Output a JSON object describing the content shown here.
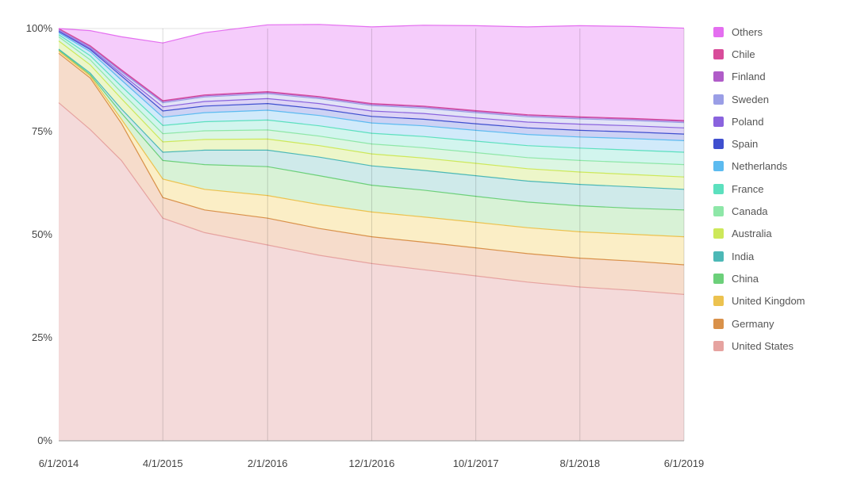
{
  "chart_data": {
    "type": "area",
    "stacked_percent": true,
    "x": [
      "6/1/2014",
      "9/1/2014",
      "12/1/2014",
      "4/1/2015",
      "8/1/2015",
      "2/1/2016",
      "7/1/2016",
      "12/1/2016",
      "5/1/2017",
      "10/1/2017",
      "3/1/2018",
      "8/1/2018",
      "1/1/2019",
      "6/1/2019"
    ],
    "x_tick_labels": [
      "6/1/2014",
      "4/1/2015",
      "2/1/2016",
      "12/1/2016",
      "10/1/2017",
      "8/1/2018",
      "6/1/2019"
    ],
    "y_tick_labels": [
      "0%",
      "25%",
      "50%",
      "75%",
      "100%"
    ],
    "ylim": [
      0,
      100
    ],
    "grid": true,
    "legend_position": "right",
    "series": [
      {
        "name": "United States",
        "color": "#e6a3a0",
        "fill": "#f4dada",
        "values": [
          82,
          75.5,
          68,
          54,
          50.5,
          47.5,
          45,
          43,
          41.5,
          40,
          38.5,
          37.3,
          36.5,
          35.5
        ]
      },
      {
        "name": "Germany",
        "color": "#d9914a",
        "fill": "#f6dccb",
        "values": [
          12,
          12.5,
          9,
          5,
          5.5,
          6.5,
          6.5,
          6.5,
          6.7,
          6.8,
          6.9,
          7,
          7.1,
          7.2
        ]
      },
      {
        "name": "United Kingdom",
        "color": "#ecc24f",
        "fill": "#fbeec6",
        "values": [
          0.5,
          0.5,
          1,
          4.5,
          5,
          5.5,
          5.8,
          6,
          6.1,
          6.2,
          6.3,
          6.4,
          6.5,
          6.8
        ]
      },
      {
        "name": "China",
        "color": "#6cd07a",
        "fill": "#d8f2d6",
        "values": [
          0.3,
          0.3,
          1.5,
          4.5,
          6,
          7,
          7,
          6.5,
          6.5,
          6.3,
          6.2,
          6.3,
          6.3,
          6.5
        ]
      },
      {
        "name": "India",
        "color": "#4cb8b6",
        "fill": "#cfeaea",
        "values": [
          0.2,
          0.4,
          1,
          2,
          3.5,
          4,
          4.5,
          4.7,
          4.8,
          5,
          5.1,
          5.2,
          5.2,
          5
        ]
      },
      {
        "name": "Australia",
        "color": "#cde85a",
        "fill": "#edf6c9",
        "values": [
          2,
          2,
          2.5,
          2.5,
          2.6,
          2.7,
          2.8,
          2.9,
          3,
          3,
          3,
          3,
          3,
          3
        ]
      },
      {
        "name": "Canada",
        "color": "#8ee7a8",
        "fill": "#dcf6e3",
        "values": [
          1,
          1.2,
          1.5,
          2,
          2.1,
          2.2,
          2.3,
          2.4,
          2.5,
          2.6,
          2.7,
          2.8,
          2.9,
          3
        ]
      },
      {
        "name": "France",
        "color": "#5ce0be",
        "fill": "#d2f5ee",
        "values": [
          0.5,
          1,
          1.5,
          2,
          2.2,
          2.4,
          2.5,
          2.6,
          2.7,
          2.8,
          2.9,
          3,
          3,
          3
        ]
      },
      {
        "name": "Netherlands",
        "color": "#5cbbf0",
        "fill": "#d1eafa",
        "values": [
          0.5,
          1,
          1.5,
          2,
          2.2,
          2.4,
          2.5,
          2.5,
          2.6,
          2.6,
          2.7,
          2.7,
          2.8,
          2.8
        ]
      },
      {
        "name": "Spain",
        "color": "#3f4fcf",
        "fill": "#cdd2f4",
        "values": [
          0.3,
          0.5,
          1,
          1.5,
          1.6,
          1.6,
          1.6,
          1.6,
          1.6,
          1.6,
          1.6,
          1.6,
          1.6,
          1.6
        ]
      },
      {
        "name": "Poland",
        "color": "#8a63de",
        "fill": "#ddd3f6",
        "values": [
          0.2,
          0.3,
          0.5,
          1,
          1.1,
          1.2,
          1.3,
          1.3,
          1.4,
          1.4,
          1.4,
          1.5,
          1.5,
          1.5
        ]
      },
      {
        "name": "Sweden",
        "color": "#9a9ee6",
        "fill": "#e2e3f7",
        "values": [
          0.2,
          0.3,
          0.5,
          1,
          1.1,
          1.2,
          1.2,
          1.3,
          1.3,
          1.3,
          1.3,
          1.3,
          1.3,
          1.3
        ]
      },
      {
        "name": "Finland",
        "color": "#b05cc8",
        "fill": "#ead5f2",
        "values": [
          0.2,
          0.2,
          0.3,
          0.3,
          0.3,
          0.3,
          0.3,
          0.3,
          0.3,
          0.3,
          0.3,
          0.3,
          0.3,
          0.3
        ]
      },
      {
        "name": "Chile",
        "color": "#d84c9a",
        "fill": "#f5d2e6",
        "values": [
          0.1,
          0.1,
          0.2,
          0.2,
          0.2,
          0.2,
          0.2,
          0.2,
          0.2,
          0.2,
          0.2,
          0.2,
          0.2,
          0.2
        ]
      },
      {
        "name": "Others",
        "color": "#e46ef0",
        "fill": "#f5ccfb",
        "values": [
          0,
          3.7,
          8,
          14,
          15.1,
          16.2,
          17.5,
          18.6,
          19.6,
          20.6,
          21.3,
          22.1,
          22.3,
          22.4
        ]
      }
    ]
  }
}
